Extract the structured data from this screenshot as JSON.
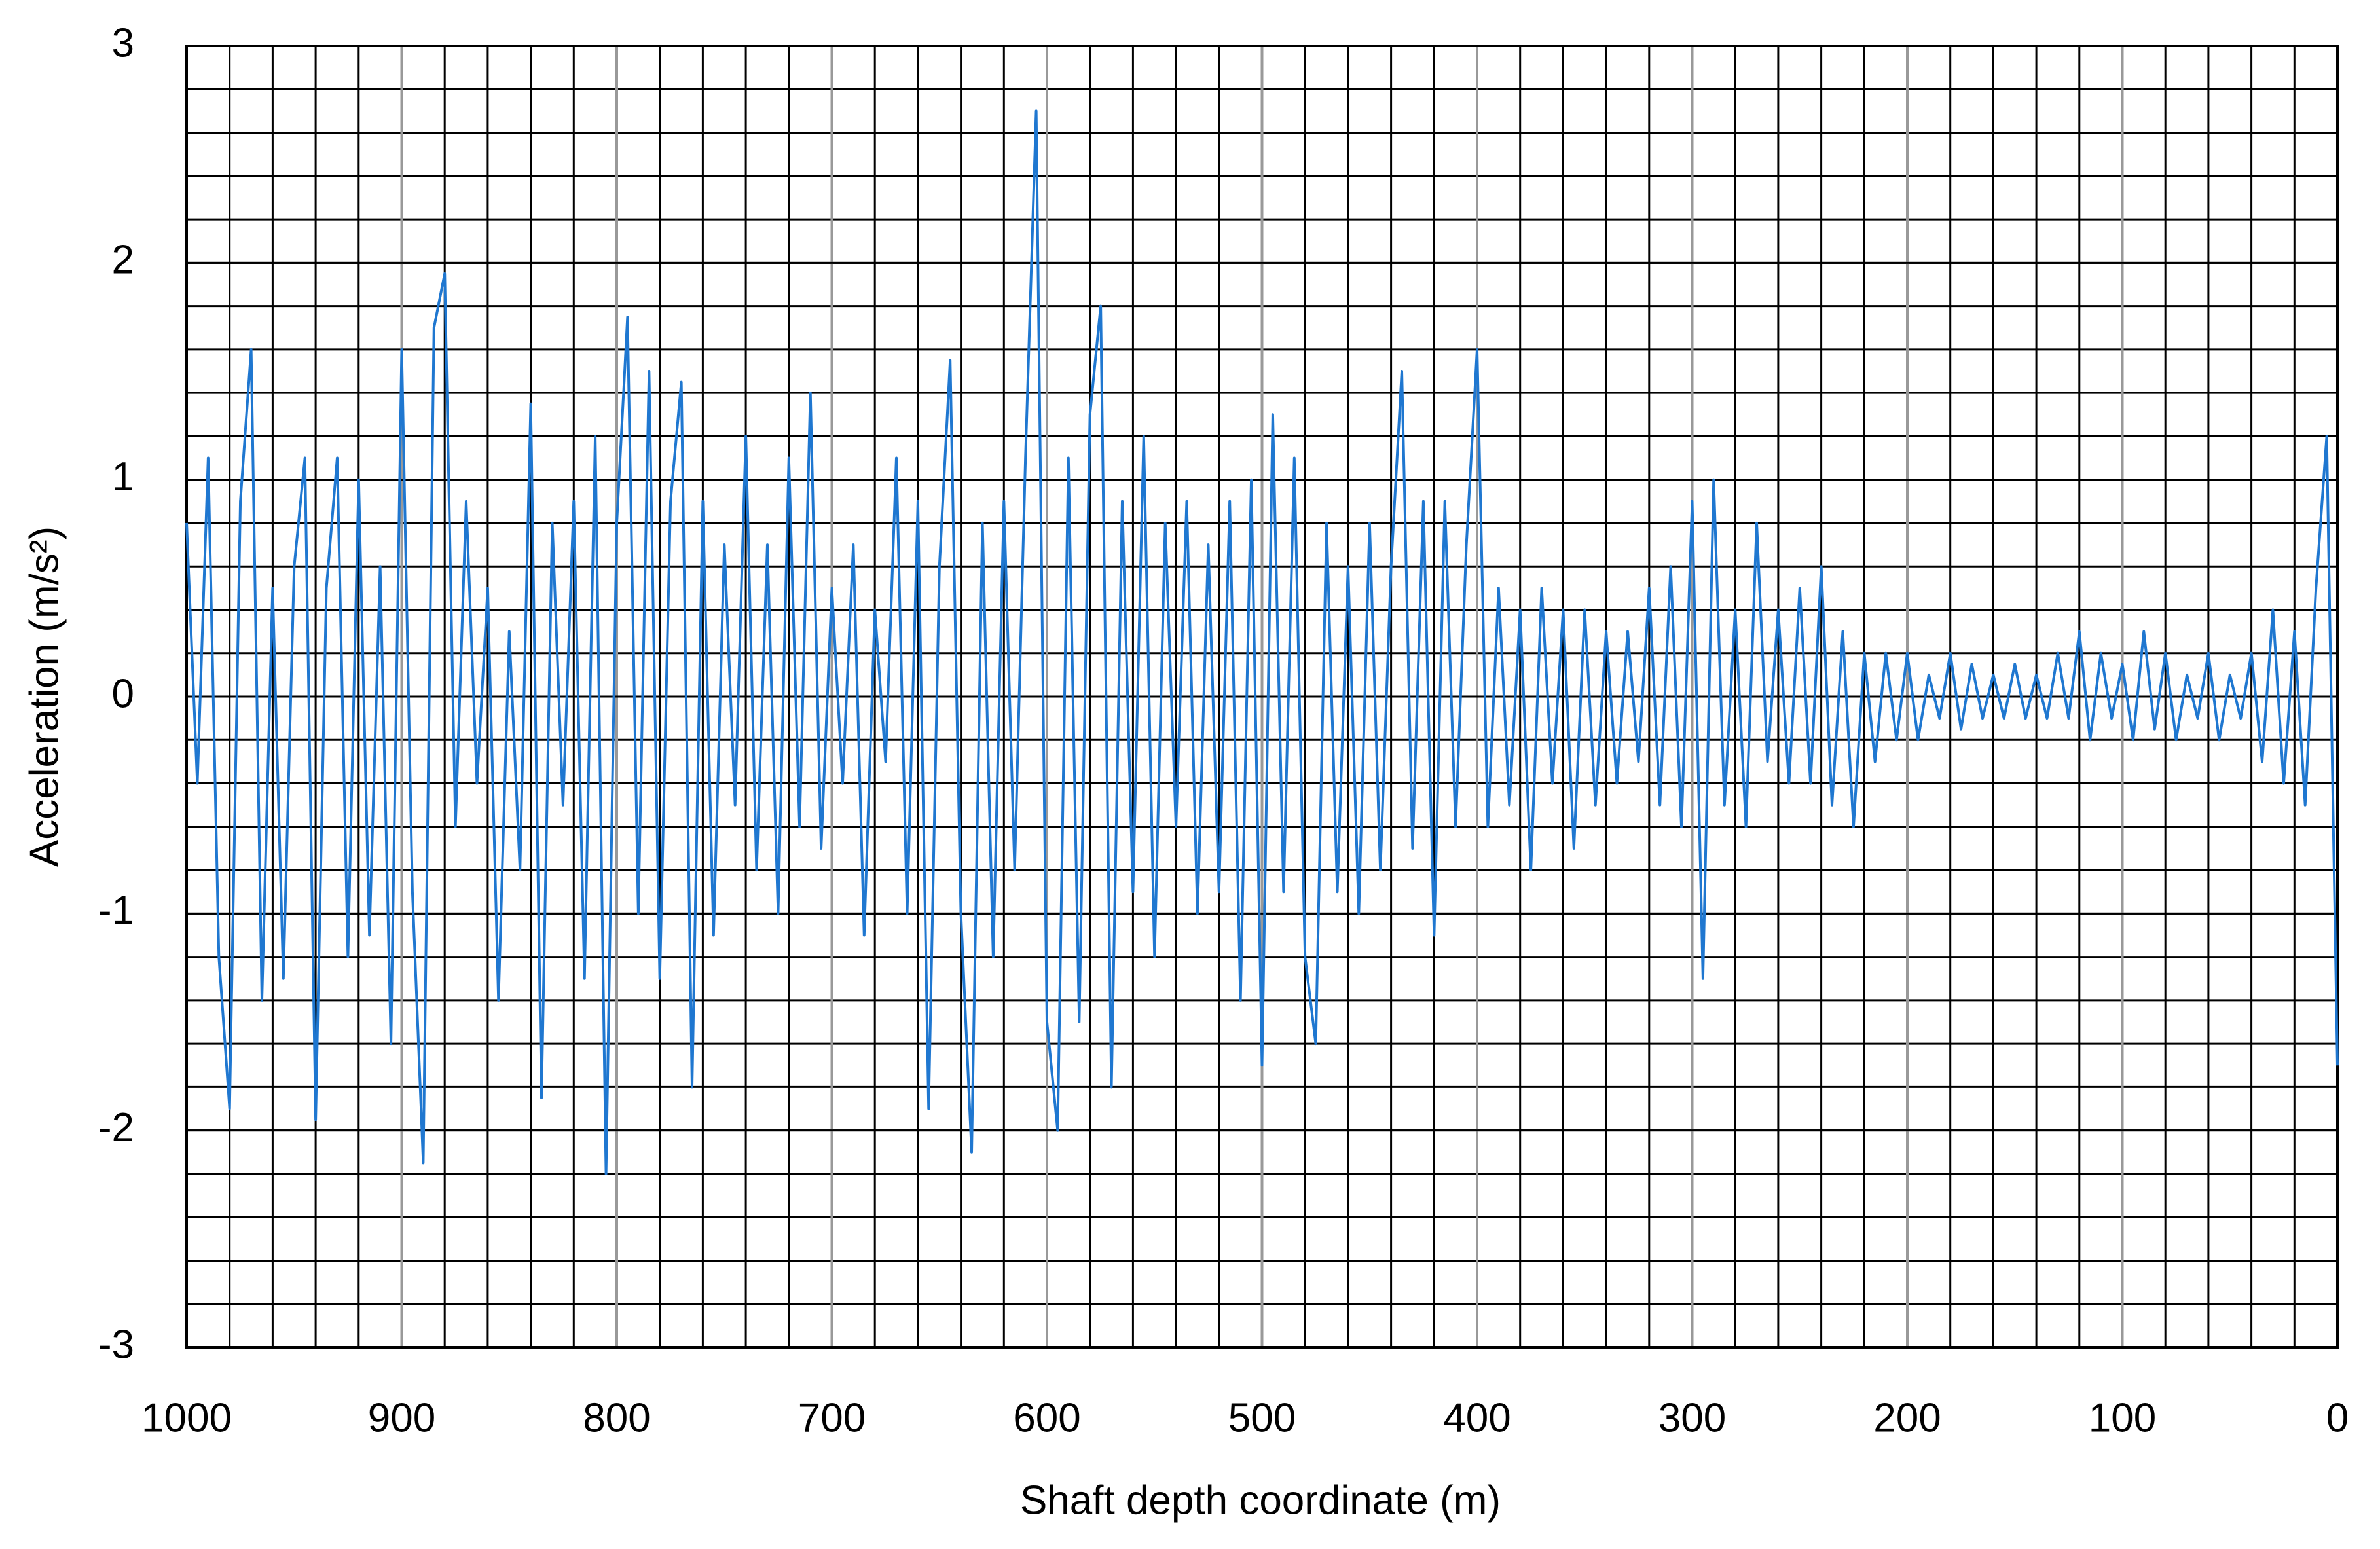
{
  "chart_data": {
    "type": "line",
    "xlabel": "Shaft depth coordinate (m)",
    "ylabel": "Acceleration (m/s²)",
    "xlim": [
      1000,
      0
    ],
    "ylim": [
      -3,
      3
    ],
    "xticks": [
      1000,
      900,
      800,
      700,
      600,
      500,
      400,
      300,
      200,
      100,
      0
    ],
    "yticks": [
      -3,
      -2,
      -1,
      0,
      1,
      2,
      3
    ],
    "xminorticks": [
      0,
      20,
      40,
      60,
      80,
      100,
      120,
      140,
      160,
      180,
      200,
      220,
      240,
      260,
      280,
      300,
      320,
      340,
      360,
      380,
      400,
      420,
      440,
      460,
      480,
      500,
      520,
      540,
      560,
      580,
      600,
      620,
      640,
      660,
      680,
      700,
      720,
      740,
      760,
      780,
      800,
      820,
      840,
      860,
      880,
      900,
      920,
      940,
      960,
      980,
      1000
    ],
    "yminorticks": [
      -3,
      -2.8,
      -2.6,
      -2.4,
      -2.2,
      -2,
      -1.8,
      -1.6,
      -1.4,
      -1.2,
      -1,
      -0.8,
      -0.6,
      -0.4,
      -0.2,
      0,
      0.2,
      0.4,
      0.6,
      0.8,
      1,
      1.2,
      1.4,
      1.6,
      1.8,
      2,
      2.2,
      2.4,
      2.6,
      2.8,
      3
    ],
    "grid": true,
    "grid_color": "#000000",
    "major_xgrid_color": "#999999",
    "x": [
      1000,
      995,
      990,
      985,
      980,
      975,
      970,
      965,
      960,
      955,
      950,
      945,
      940,
      935,
      930,
      925,
      920,
      915,
      910,
      905,
      900,
      895,
      890,
      885,
      880,
      875,
      870,
      865,
      860,
      855,
      850,
      845,
      840,
      835,
      830,
      825,
      820,
      815,
      810,
      805,
      800,
      795,
      790,
      785,
      780,
      775,
      770,
      765,
      760,
      755,
      750,
      745,
      740,
      735,
      730,
      725,
      720,
      715,
      710,
      705,
      700,
      695,
      690,
      685,
      680,
      675,
      670,
      665,
      660,
      655,
      650,
      645,
      640,
      635,
      630,
      625,
      620,
      615,
      610,
      605,
      600,
      595,
      590,
      585,
      580,
      575,
      570,
      565,
      560,
      555,
      550,
      545,
      540,
      535,
      530,
      525,
      520,
      515,
      510,
      505,
      500,
      495,
      490,
      485,
      480,
      475,
      470,
      465,
      460,
      455,
      450,
      445,
      440,
      435,
      430,
      425,
      420,
      415,
      410,
      405,
      400,
      395,
      390,
      385,
      380,
      375,
      370,
      365,
      360,
      355,
      350,
      345,
      340,
      335,
      330,
      325,
      320,
      315,
      310,
      305,
      300,
      295,
      290,
      285,
      280,
      275,
      270,
      265,
      260,
      255,
      250,
      245,
      240,
      235,
      230,
      225,
      220,
      215,
      210,
      205,
      200,
      195,
      190,
      185,
      180,
      175,
      170,
      165,
      160,
      155,
      150,
      145,
      140,
      135,
      130,
      125,
      120,
      115,
      110,
      105,
      100,
      95,
      90,
      85,
      80,
      75,
      70,
      65,
      60,
      55,
      50,
      45,
      40,
      35,
      30,
      25,
      20,
      15,
      10,
      5,
      0
    ],
    "series": [
      {
        "color": "#1f77d0",
        "values": [
          0.8,
          -0.4,
          1.1,
          -1.2,
          -1.9,
          0.9,
          1.6,
          -1.4,
          0.5,
          -1.3,
          0.6,
          1.1,
          -1.95,
          0.5,
          1.1,
          -1.2,
          1.0,
          -1.1,
          0.6,
          -1.6,
          1.6,
          -0.9,
          -2.15,
          1.7,
          1.95,
          -0.6,
          0.9,
          -0.4,
          0.5,
          -1.4,
          0.3,
          -0.8,
          1.35,
          -1.85,
          0.8,
          -0.5,
          0.9,
          -1.3,
          1.2,
          -2.2,
          0.8,
          1.75,
          -1.0,
          1.5,
          -1.3,
          0.9,
          1.45,
          -1.8,
          0.9,
          -1.1,
          0.7,
          -0.5,
          1.2,
          -0.8,
          0.7,
          -1.0,
          1.1,
          -0.6,
          1.4,
          -0.7,
          0.5,
          -0.4,
          0.7,
          -1.1,
          0.4,
          -0.3,
          1.1,
          -1.0,
          0.9,
          -1.9,
          0.6,
          1.55,
          -1.0,
          -2.1,
          0.8,
          -1.2,
          0.9,
          -0.8,
          1.1,
          2.7,
          -1.5,
          -2.0,
          1.1,
          -1.5,
          1.3,
          1.8,
          -1.8,
          0.9,
          -0.9,
          1.2,
          -1.2,
          0.8,
          -0.6,
          0.9,
          -1.0,
          0.7,
          -0.9,
          0.9,
          -1.4,
          1.0,
          -1.7,
          1.3,
          -0.9,
          1.1,
          -1.2,
          -1.6,
          0.8,
          -0.9,
          0.6,
          -1.0,
          0.8,
          -0.8,
          0.6,
          1.5,
          -0.7,
          0.9,
          -1.1,
          0.9,
          -0.6,
          0.7,
          1.6,
          -0.6,
          0.5,
          -0.5,
          0.4,
          -0.8,
          0.5,
          -0.4,
          0.4,
          -0.7,
          0.4,
          -0.5,
          0.3,
          -0.4,
          0.3,
          -0.3,
          0.5,
          -0.5,
          0.6,
          -0.6,
          0.9,
          -1.3,
          1.0,
          -0.5,
          0.4,
          -0.6,
          0.8,
          -0.3,
          0.4,
          -0.4,
          0.5,
          -0.4,
          0.6,
          -0.5,
          0.3,
          -0.6,
          0.2,
          -0.3,
          0.2,
          -0.2,
          0.2,
          -0.2,
          0.1,
          -0.1,
          0.2,
          -0.15,
          0.15,
          -0.1,
          0.1,
          -0.1,
          0.15,
          -0.1,
          0.1,
          -0.1,
          0.2,
          -0.1,
          0.3,
          -0.2,
          0.2,
          -0.1,
          0.15,
          -0.2,
          0.3,
          -0.15,
          0.2,
          -0.2,
          0.1,
          -0.1,
          0.2,
          -0.2,
          0.1,
          -0.1,
          0.2,
          -0.3,
          0.4,
          -0.4,
          0.3,
          -0.5,
          0.5,
          1.2,
          -1.7
        ]
      }
    ]
  }
}
